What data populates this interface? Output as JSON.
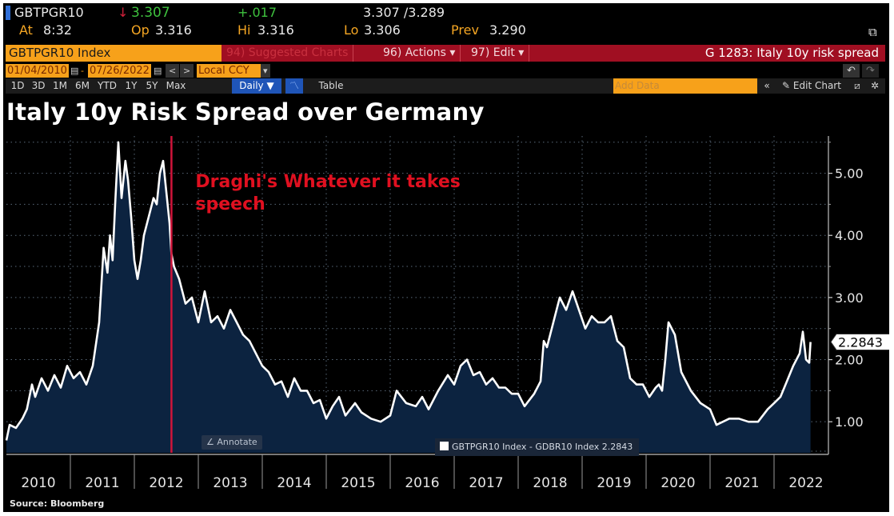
{
  "header": {
    "ticker": "GBTPGR10",
    "arrow": "↓",
    "last": "3.307",
    "change": "+.017",
    "bid_ask": "3.307 /3.289",
    "at_label": "At",
    "at_value": "8:32",
    "open_label": "Op",
    "open_value": "3.316",
    "high_label": "Hi",
    "high_value": "3.316",
    "low_label": "Lo",
    "low_value": "3.306",
    "prev_label": "Prev",
    "prev_value": "3.290",
    "popout_icon": "⧉"
  },
  "command_bar": {
    "security": "GBTPGR10 Index",
    "suggested": "94) Suggested Charts",
    "actions": "96) Actions ▾",
    "edit": "97) Edit ▾",
    "chart_title": "G 1283: Italy 10y risk spread"
  },
  "date_bar": {
    "start_date": "01/04/2010",
    "dash": "-",
    "end_date": "07/26/2022",
    "calendar_icon": "▤",
    "prev": "<",
    "next": ">",
    "currency": "Local CCY",
    "currency_arrow": "▾",
    "undo": "↶",
    "redo": "↷"
  },
  "toolbar": {
    "ranges": [
      "1D",
      "3D",
      "1M",
      "6M",
      "YTD",
      "1Y",
      "5Y",
      "Max"
    ],
    "frequency": "Daily ▼",
    "chart_icon": "〽",
    "table": "Table",
    "add_data_placeholder": "Add Data",
    "collapse": "«",
    "edit_chart": "✎ Edit Chart",
    "annotate_icon": "⧄",
    "settings_icon": "✲"
  },
  "annotate_button": "∠  Annotate",
  "source": "Source: Bloomberg",
  "colors": {
    "background": "#000000",
    "area_fill": "#0c2340",
    "line": "#ffffff",
    "annotation": "#e01020",
    "vline": "#d0143a",
    "orange": "#f7a11a",
    "command_red": "#a00f22"
  },
  "chart_data": {
    "type": "area",
    "title": "Italy 10y Risk Spread over Germany",
    "xlabel": "",
    "ylabel": "",
    "ylim": [
      0.5,
      5.6
    ],
    "yticks": [
      1.0,
      2.0,
      3.0,
      4.0,
      5.0
    ],
    "ytick_labels": [
      "1.00",
      "2.00",
      "3.00",
      "4.00",
      "5.00"
    ],
    "xtick_labels": [
      "2010",
      "2011",
      "2012",
      "2013",
      "2014",
      "2015",
      "2016",
      "2017",
      "2018",
      "2019",
      "2020",
      "2021",
      "2022"
    ],
    "xlim": [
      2010.0,
      2022.85
    ],
    "grid": true,
    "legend_position": "bottom-center",
    "series": [
      {
        "name": "GBTPGR10 Index - GDBR10 Index",
        "last_value_label": "2.2843",
        "x": [
          2010.0,
          2010.05,
          2010.15,
          2010.25,
          2010.32,
          2010.4,
          2010.45,
          2010.55,
          2010.65,
          2010.75,
          2010.85,
          2010.95,
          2011.05,
          2011.15,
          2011.25,
          2011.35,
          2011.45,
          2011.52,
          2011.58,
          2011.62,
          2011.66,
          2011.7,
          2011.75,
          2011.8,
          2011.86,
          2011.9,
          2011.95,
          2012.0,
          2012.05,
          2012.1,
          2012.15,
          2012.2,
          2012.25,
          2012.3,
          2012.35,
          2012.4,
          2012.45,
          2012.5,
          2012.55,
          2012.58,
          2012.62,
          2012.7,
          2012.8,
          2012.9,
          2013.0,
          2013.1,
          2013.2,
          2013.3,
          2013.4,
          2013.5,
          2013.6,
          2013.7,
          2013.8,
          2013.9,
          2014.0,
          2014.1,
          2014.2,
          2014.3,
          2014.4,
          2014.5,
          2014.6,
          2014.7,
          2014.8,
          2014.9,
          2015.0,
          2015.1,
          2015.2,
          2015.3,
          2015.45,
          2015.55,
          2015.7,
          2015.85,
          2016.0,
          2016.1,
          2016.25,
          2016.4,
          2016.5,
          2016.6,
          2016.75,
          2016.9,
          2017.0,
          2017.1,
          2017.2,
          2017.3,
          2017.4,
          2017.5,
          2017.6,
          2017.7,
          2017.8,
          2017.9,
          2018.0,
          2018.1,
          2018.25,
          2018.35,
          2018.4,
          2018.45,
          2018.55,
          2018.65,
          2018.75,
          2018.85,
          2018.95,
          2019.05,
          2019.15,
          2019.25,
          2019.35,
          2019.45,
          2019.55,
          2019.65,
          2019.75,
          2019.85,
          2019.95,
          2020.05,
          2020.15,
          2020.2,
          2020.25,
          2020.3,
          2020.35,
          2020.45,
          2020.55,
          2020.7,
          2020.85,
          2021.0,
          2021.1,
          2021.2,
          2021.3,
          2021.45,
          2021.6,
          2021.75,
          2021.9,
          2022.0,
          2022.1,
          2022.2,
          2022.3,
          2022.4,
          2022.45,
          2022.5,
          2022.55,
          2022.57
        ],
        "values": [
          0.7,
          0.95,
          0.9,
          1.05,
          1.2,
          1.6,
          1.4,
          1.7,
          1.5,
          1.75,
          1.55,
          1.9,
          1.7,
          1.8,
          1.6,
          1.9,
          2.6,
          3.8,
          3.4,
          4.0,
          3.6,
          4.5,
          5.5,
          4.6,
          5.2,
          4.9,
          4.3,
          3.6,
          3.3,
          3.6,
          4.0,
          4.2,
          4.4,
          4.6,
          4.5,
          5.0,
          5.2,
          4.7,
          4.2,
          3.7,
          3.5,
          3.3,
          2.9,
          3.0,
          2.6,
          3.1,
          2.6,
          2.7,
          2.5,
          2.8,
          2.6,
          2.4,
          2.3,
          2.1,
          1.9,
          1.8,
          1.6,
          1.65,
          1.4,
          1.7,
          1.5,
          1.5,
          1.3,
          1.35,
          1.05,
          1.25,
          1.4,
          1.1,
          1.3,
          1.15,
          1.05,
          1.0,
          1.1,
          1.5,
          1.3,
          1.25,
          1.4,
          1.2,
          1.5,
          1.75,
          1.6,
          1.9,
          2.0,
          1.75,
          1.8,
          1.6,
          1.7,
          1.55,
          1.55,
          1.45,
          1.45,
          1.25,
          1.45,
          1.65,
          2.3,
          2.2,
          2.6,
          3.0,
          2.8,
          3.1,
          2.8,
          2.5,
          2.7,
          2.6,
          2.6,
          2.7,
          2.3,
          2.2,
          1.7,
          1.6,
          1.6,
          1.4,
          1.55,
          1.6,
          1.5,
          2.0,
          2.6,
          2.4,
          1.8,
          1.5,
          1.3,
          1.2,
          0.95,
          1.0,
          1.05,
          1.05,
          1.0,
          1.0,
          1.2,
          1.3,
          1.4,
          1.65,
          1.9,
          2.1,
          2.45,
          2.0,
          1.95,
          2.2843
        ]
      }
    ],
    "annotations": [
      {
        "text_line1": "Draghi's Whatever it takes",
        "text_line2": "speech",
        "x": 2012.58,
        "type": "vertical-line"
      }
    ]
  }
}
